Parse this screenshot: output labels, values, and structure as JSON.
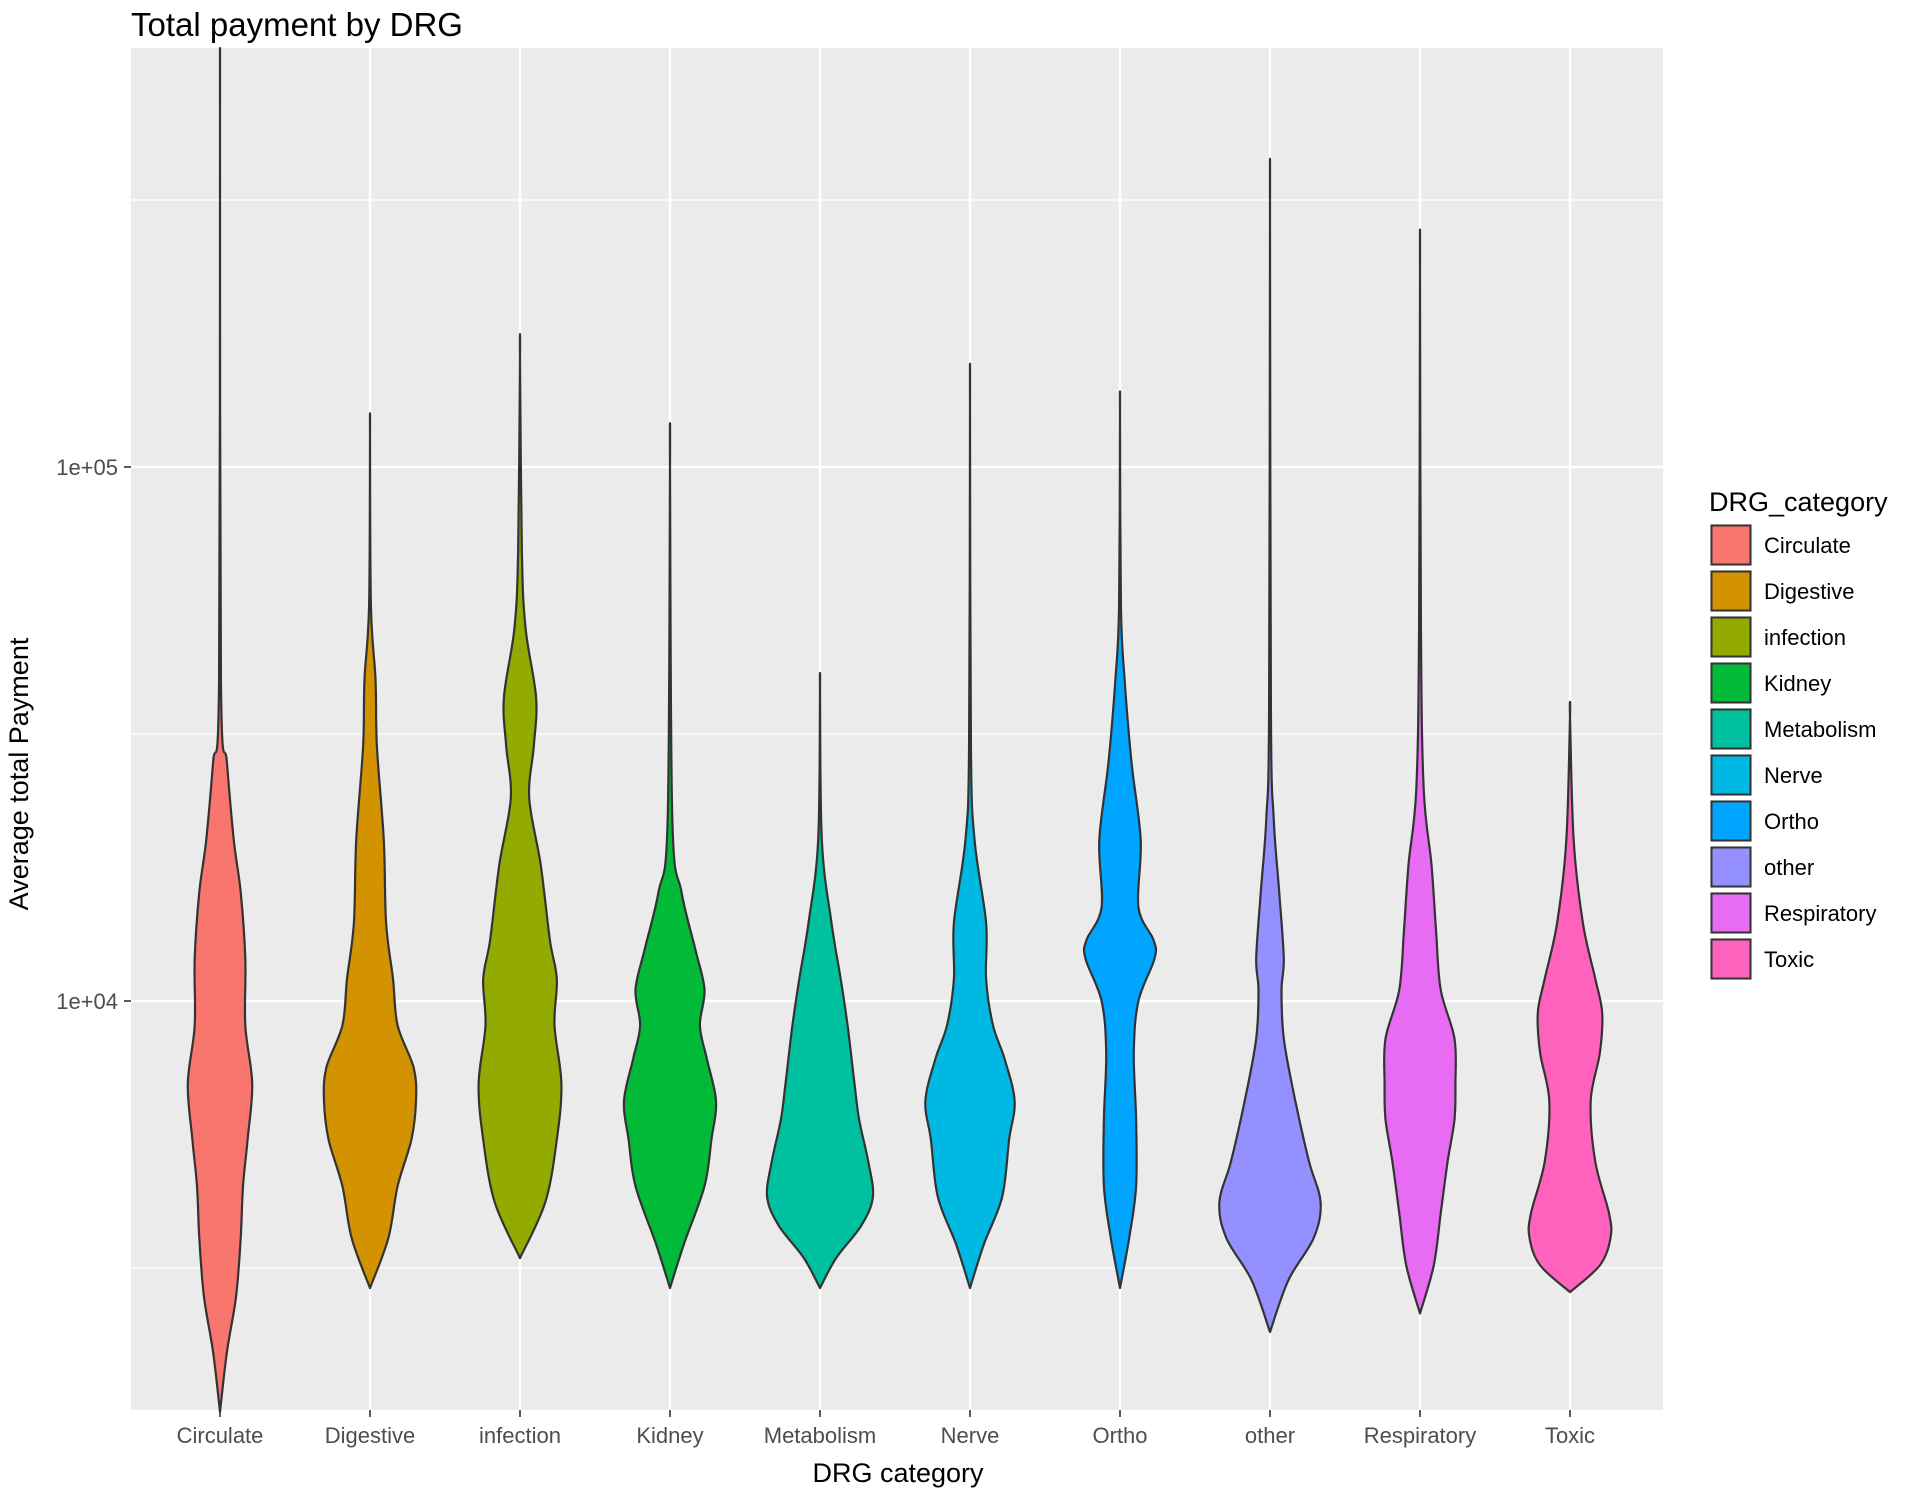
{
  "chart_data": {
    "type": "violin",
    "title": "Total payment by DRG",
    "xlabel": "DRG category",
    "ylabel": "Average total Payment",
    "y_scale": "log10",
    "ylim": [
      1500,
      1000000
    ],
    "y_ticks": [
      {
        "value": 10000,
        "label": "1e+04"
      },
      {
        "value": 100000,
        "label": "1e+05"
      }
    ],
    "y_minor_gridlines": [
      3162,
      31623,
      316228
    ],
    "grid": true,
    "legend": {
      "title": "DRG_category",
      "position": "right"
    },
    "categories": [
      "Circulate",
      "Digestive",
      "infection",
      "Kidney",
      "Metabolism",
      "Nerve",
      "Ortho",
      "other",
      "Respiratory",
      "Toxic"
    ],
    "series": [
      {
        "name": "Circulate",
        "color": "#F8766D",
        "min": 1700,
        "max": 450000,
        "profile": [
          [
            1700,
            0.0
          ],
          [
            2200,
            0.15
          ],
          [
            2800,
            0.35
          ],
          [
            3600,
            0.45
          ],
          [
            4500,
            0.5
          ],
          [
            5500,
            0.6
          ],
          [
            7000,
            0.7
          ],
          [
            9000,
            0.55
          ],
          [
            12000,
            0.55
          ],
          [
            16000,
            0.45
          ],
          [
            20000,
            0.3
          ],
          [
            28000,
            0.15
          ],
          [
            40000,
            0.02
          ],
          [
            450000,
            0.0
          ]
        ]
      },
      {
        "name": "Digestive",
        "color": "#D39200",
        "min": 2900,
        "max": 115000,
        "profile": [
          [
            2900,
            0.0
          ],
          [
            3600,
            0.4
          ],
          [
            4500,
            0.6
          ],
          [
            5500,
            0.9
          ],
          [
            6500,
            1.0
          ],
          [
            7500,
            0.95
          ],
          [
            9000,
            0.6
          ],
          [
            11000,
            0.5
          ],
          [
            14000,
            0.35
          ],
          [
            20000,
            0.3
          ],
          [
            30000,
            0.15
          ],
          [
            40000,
            0.12
          ],
          [
            55000,
            0.02
          ],
          [
            115000,
            0.0
          ]
        ]
      },
      {
        "name": "infection",
        "color": "#93AA00",
        "min": 3300,
        "max": 160000,
        "profile": [
          [
            3300,
            0.0
          ],
          [
            4200,
            0.55
          ],
          [
            5500,
            0.8
          ],
          [
            7000,
            0.9
          ],
          [
            9000,
            0.75
          ],
          [
            11000,
            0.8
          ],
          [
            13000,
            0.65
          ],
          [
            18000,
            0.45
          ],
          [
            24000,
            0.2
          ],
          [
            30000,
            0.3
          ],
          [
            37000,
            0.35
          ],
          [
            50000,
            0.12
          ],
          [
            70000,
            0.04
          ],
          [
            160000,
            0.0
          ]
        ]
      },
      {
        "name": "Kidney",
        "color": "#00BA38",
        "min": 2900,
        "max": 100000,
        "profile": [
          [
            2900,
            0.0
          ],
          [
            3500,
            0.3
          ],
          [
            4500,
            0.75
          ],
          [
            5500,
            0.9
          ],
          [
            6500,
            1.0
          ],
          [
            7800,
            0.8
          ],
          [
            9000,
            0.65
          ],
          [
            10500,
            0.75
          ],
          [
            12500,
            0.55
          ],
          [
            16000,
            0.25
          ],
          [
            22000,
            0.05
          ],
          [
            100000,
            0.0
          ]
        ]
      },
      {
        "name": "Metabolism",
        "color": "#00C19F",
        "min": 2900,
        "max": 38000,
        "profile": [
          [
            2900,
            0.0
          ],
          [
            3300,
            0.35
          ],
          [
            3800,
            0.9
          ],
          [
            4300,
            1.15
          ],
          [
            5000,
            1.05
          ],
          [
            6000,
            0.85
          ],
          [
            7000,
            0.75
          ],
          [
            9000,
            0.6
          ],
          [
            11000,
            0.45
          ],
          [
            14000,
            0.25
          ],
          [
            20000,
            0.04
          ],
          [
            38000,
            0.0
          ]
        ]
      },
      {
        "name": "Nerve",
        "color": "#00B9E3",
        "min": 2900,
        "max": 130000,
        "profile": [
          [
            2900,
            0.0
          ],
          [
            3500,
            0.3
          ],
          [
            4300,
            0.7
          ],
          [
            5500,
            0.85
          ],
          [
            6500,
            0.97
          ],
          [
            7800,
            0.75
          ],
          [
            9000,
            0.5
          ],
          [
            11000,
            0.35
          ],
          [
            14000,
            0.35
          ],
          [
            20000,
            0.1
          ],
          [
            30000,
            0.02
          ],
          [
            130000,
            0.0
          ]
        ]
      },
      {
        "name": "Ortho",
        "color": "#00A5FF",
        "min": 2900,
        "max": 125000,
        "profile": [
          [
            2900,
            0.0
          ],
          [
            3600,
            0.2
          ],
          [
            4500,
            0.35
          ],
          [
            6000,
            0.35
          ],
          [
            8000,
            0.3
          ],
          [
            10000,
            0.4
          ],
          [
            12000,
            0.75
          ],
          [
            13000,
            0.73
          ],
          [
            15000,
            0.4
          ],
          [
            20000,
            0.45
          ],
          [
            28000,
            0.25
          ],
          [
            40000,
            0.1
          ],
          [
            55000,
            0.02
          ],
          [
            125000,
            0.0
          ]
        ]
      },
      {
        "name": "other",
        "color": "#9590FF",
        "min": 2400,
        "max": 290000,
        "profile": [
          [
            2400,
            0.0
          ],
          [
            3000,
            0.4
          ],
          [
            3600,
            0.95
          ],
          [
            4200,
            1.1
          ],
          [
            5000,
            0.85
          ],
          [
            6500,
            0.55
          ],
          [
            8500,
            0.3
          ],
          [
            10500,
            0.25
          ],
          [
            12000,
            0.3
          ],
          [
            16000,
            0.2
          ],
          [
            22000,
            0.08
          ],
          [
            35000,
            0.02
          ],
          [
            290000,
            0.0
          ]
        ]
      },
      {
        "name": "Respiratory",
        "color": "#E76BF3",
        "min": 2600,
        "max": 230000,
        "profile": [
          [
            2600,
            0.0
          ],
          [
            3200,
            0.3
          ],
          [
            4000,
            0.45
          ],
          [
            5000,
            0.6
          ],
          [
            6000,
            0.75
          ],
          [
            7000,
            0.77
          ],
          [
            8500,
            0.75
          ],
          [
            10500,
            0.45
          ],
          [
            13500,
            0.35
          ],
          [
            18000,
            0.25
          ],
          [
            25000,
            0.08
          ],
          [
            50000,
            0.02
          ],
          [
            230000,
            0.0
          ]
        ]
      },
      {
        "name": "Toxic",
        "color": "#FF62BC",
        "min": 2850,
        "max": 34000,
        "profile": [
          [
            2850,
            0.0
          ],
          [
            3200,
            0.65
          ],
          [
            3600,
            0.88
          ],
          [
            4000,
            0.85
          ],
          [
            5000,
            0.55
          ],
          [
            6500,
            0.45
          ],
          [
            8000,
            0.65
          ],
          [
            9500,
            0.7
          ],
          [
            11000,
            0.55
          ],
          [
            14000,
            0.28
          ],
          [
            20000,
            0.08
          ],
          [
            34000,
            0.0
          ]
        ]
      }
    ]
  }
}
